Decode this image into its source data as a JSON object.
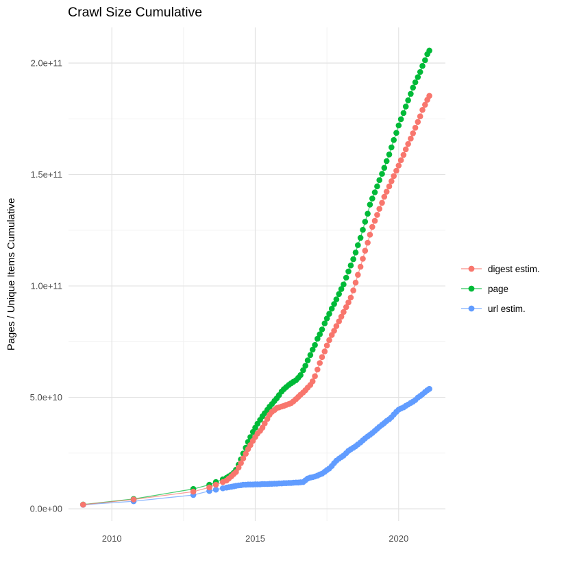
{
  "title": "Crawl Size Cumulative",
  "axes": {
    "y_label": "Pages / Unique Items Cumulative",
    "x_tick_labels": [
      "2010",
      "2015",
      "2020"
    ],
    "y_tick_labels": [
      "0.0e+00",
      "5.0e+10",
      "1.0e+11",
      "1.5e+11",
      "2.0e+11"
    ]
  },
  "legend": {
    "items": [
      {
        "label": "digest estim.",
        "color": "#F8766D"
      },
      {
        "label": "page",
        "color": "#00BA38"
      },
      {
        "label": "url estim.",
        "color": "#619CFF"
      }
    ]
  },
  "colors": {
    "background": "#ffffff",
    "grid_major": "#e2e2e2",
    "grid_minor": "#efefef",
    "tick_text": "#4d4d4d",
    "digest": "#F8766D",
    "page": "#00BA38",
    "url": "#619CFF"
  },
  "chart_data": {
    "type": "scatter",
    "title": "Crawl Size Cumulative",
    "xlabel": "",
    "ylabel": "Pages / Unique Items Cumulative",
    "xlim": [
      2008.49,
      2021.63
    ],
    "ylim": [
      -5500000000,
      216000000000
    ],
    "x_ticks": [
      2010,
      2015,
      2020
    ],
    "x_minor_ticks": [
      2012.5,
      2017.5
    ],
    "y_ticks": [
      0,
      50000000000,
      100000000000,
      150000000000,
      200000000000
    ],
    "y_minor_ticks": [
      25000000000,
      75000000000,
      125000000000,
      175000000000
    ],
    "y_tick_labels": [
      "0.0e+00",
      "5.0e+10",
      "1.0e+11",
      "1.5e+11",
      "2.0e+11"
    ],
    "grid": true,
    "legend_position": "right",
    "y_unit": "billions of pages (1e9)",
    "series": [
      {
        "name": "digest estim.",
        "color": "#F8766D",
        "points": [
          [
            2009.0,
            1.85
          ],
          [
            2010.76,
            4.2
          ],
          [
            2012.84,
            7.7
          ],
          [
            2013.4,
            9.6
          ],
          [
            2013.63,
            10.8
          ],
          [
            2013.87,
            12.0
          ],
          [
            2014.0,
            12.7
          ],
          [
            2014.08,
            13.6
          ],
          [
            2014.17,
            14.6
          ],
          [
            2014.25,
            15.6
          ],
          [
            2014.33,
            16.5
          ],
          [
            2014.42,
            18.5
          ],
          [
            2014.5,
            20.5
          ],
          [
            2014.58,
            22.6
          ],
          [
            2014.67,
            24.7
          ],
          [
            2014.75,
            26.8
          ],
          [
            2014.83,
            28.6
          ],
          [
            2014.92,
            30.5
          ],
          [
            2015.0,
            32.2
          ],
          [
            2015.08,
            33.8
          ],
          [
            2015.17,
            35.0
          ],
          [
            2015.25,
            36.4
          ],
          [
            2015.33,
            38.3
          ],
          [
            2015.42,
            40.3
          ],
          [
            2015.5,
            42.2
          ],
          [
            2015.58,
            43.5
          ],
          [
            2015.67,
            44.3
          ],
          [
            2015.75,
            45.2
          ],
          [
            2015.83,
            45.5
          ],
          [
            2015.92,
            45.9
          ],
          [
            2016.0,
            46.2
          ],
          [
            2016.08,
            46.6
          ],
          [
            2016.17,
            47.0
          ],
          [
            2016.25,
            47.4
          ],
          [
            2016.33,
            48.2
          ],
          [
            2016.42,
            49.2
          ],
          [
            2016.5,
            50.2
          ],
          [
            2016.58,
            51.2
          ],
          [
            2016.67,
            52.2
          ],
          [
            2016.75,
            53.2
          ],
          [
            2016.83,
            54.4
          ],
          [
            2016.92,
            55.6
          ],
          [
            2017.0,
            57.2
          ],
          [
            2017.08,
            59.5
          ],
          [
            2017.17,
            62.5
          ],
          [
            2017.25,
            65.4
          ],
          [
            2017.33,
            68.1
          ],
          [
            2017.42,
            70.6
          ],
          [
            2017.5,
            73.3
          ],
          [
            2017.58,
            75.7
          ],
          [
            2017.67,
            78.0
          ],
          [
            2017.75,
            79.9
          ],
          [
            2017.83,
            82.0
          ],
          [
            2017.92,
            84.1
          ],
          [
            2018.0,
            86.2
          ],
          [
            2018.08,
            88.3
          ],
          [
            2018.17,
            90.5
          ],
          [
            2018.25,
            92.6
          ],
          [
            2018.33,
            94.8
          ],
          [
            2018.42,
            98.0
          ],
          [
            2018.5,
            101.5
          ],
          [
            2018.58,
            105.0
          ],
          [
            2018.67,
            108.6
          ],
          [
            2018.75,
            112.2
          ],
          [
            2018.83,
            115.8
          ],
          [
            2018.92,
            119.4
          ],
          [
            2019.0,
            123.0
          ],
          [
            2019.08,
            126.5
          ],
          [
            2019.17,
            129.2
          ],
          [
            2019.25,
            131.9
          ],
          [
            2019.33,
            134.6
          ],
          [
            2019.42,
            137.3
          ],
          [
            2019.5,
            140.0
          ],
          [
            2019.58,
            142.3
          ],
          [
            2019.67,
            144.7
          ],
          [
            2019.75,
            147.0
          ],
          [
            2019.83,
            149.3
          ],
          [
            2019.92,
            151.7
          ],
          [
            2020.0,
            154.0
          ],
          [
            2020.08,
            156.4
          ],
          [
            2020.17,
            158.8
          ],
          [
            2020.25,
            161.3
          ],
          [
            2020.33,
            163.7
          ],
          [
            2020.42,
            166.1
          ],
          [
            2020.5,
            168.5
          ],
          [
            2020.58,
            171.0
          ],
          [
            2020.67,
            173.6
          ],
          [
            2020.75,
            176.1
          ],
          [
            2020.83,
            179.0
          ],
          [
            2020.92,
            181.3
          ],
          [
            2021.0,
            183.5
          ],
          [
            2021.07,
            185.3
          ]
        ]
      },
      {
        "name": "page",
        "color": "#00BA38",
        "points": [
          [
            2009.0,
            1.9
          ],
          [
            2010.76,
            4.4
          ],
          [
            2012.84,
            8.9
          ],
          [
            2013.4,
            10.8
          ],
          [
            2013.63,
            12.0
          ],
          [
            2013.87,
            13.2
          ],
          [
            2014.0,
            13.9
          ],
          [
            2014.08,
            14.6
          ],
          [
            2014.17,
            15.3
          ],
          [
            2014.25,
            16.2
          ],
          [
            2014.33,
            17.5
          ],
          [
            2014.42,
            19.8
          ],
          [
            2014.5,
            22.2
          ],
          [
            2014.58,
            24.8
          ],
          [
            2014.67,
            27.4
          ],
          [
            2014.75,
            30.0
          ],
          [
            2014.83,
            32.2
          ],
          [
            2014.92,
            34.5
          ],
          [
            2015.0,
            36.4
          ],
          [
            2015.08,
            38.2
          ],
          [
            2015.17,
            39.9
          ],
          [
            2015.25,
            41.5
          ],
          [
            2015.33,
            42.9
          ],
          [
            2015.42,
            44.4
          ],
          [
            2015.5,
            45.8
          ],
          [
            2015.58,
            47.0
          ],
          [
            2015.67,
            48.4
          ],
          [
            2015.75,
            49.6
          ],
          [
            2015.83,
            51.0
          ],
          [
            2015.92,
            52.6
          ],
          [
            2016.0,
            53.7
          ],
          [
            2016.08,
            54.6
          ],
          [
            2016.17,
            55.6
          ],
          [
            2016.25,
            56.3
          ],
          [
            2016.33,
            57.0
          ],
          [
            2016.42,
            57.7
          ],
          [
            2016.5,
            58.8
          ],
          [
            2016.58,
            60.0
          ],
          [
            2016.67,
            62.2
          ],
          [
            2016.75,
            64.2
          ],
          [
            2016.83,
            66.6
          ],
          [
            2016.92,
            69.0
          ],
          [
            2017.0,
            71.4
          ],
          [
            2017.08,
            73.5
          ],
          [
            2017.17,
            76.3
          ],
          [
            2017.25,
            78.3
          ],
          [
            2017.33,
            80.5
          ],
          [
            2017.42,
            83.2
          ],
          [
            2017.5,
            85.4
          ],
          [
            2017.58,
            87.5
          ],
          [
            2017.67,
            89.8
          ],
          [
            2017.75,
            91.9
          ],
          [
            2017.83,
            94.0
          ],
          [
            2017.92,
            96.4
          ],
          [
            2018.0,
            98.6
          ],
          [
            2018.08,
            100.7
          ],
          [
            2018.17,
            103.7
          ],
          [
            2018.25,
            106.5
          ],
          [
            2018.33,
            109.2
          ],
          [
            2018.42,
            112.0
          ],
          [
            2018.5,
            115.0
          ],
          [
            2018.58,
            118.3
          ],
          [
            2018.67,
            121.6
          ],
          [
            2018.75,
            125.2
          ],
          [
            2018.83,
            128.8
          ],
          [
            2018.92,
            132.4
          ],
          [
            2019.0,
            136.5
          ],
          [
            2019.08,
            139.2
          ],
          [
            2019.17,
            142.0
          ],
          [
            2019.25,
            144.7
          ],
          [
            2019.33,
            147.5
          ],
          [
            2019.42,
            150.3
          ],
          [
            2019.5,
            153.0
          ],
          [
            2019.58,
            156.0
          ],
          [
            2019.67,
            159.0
          ],
          [
            2019.75,
            162.2
          ],
          [
            2019.83,
            165.5
          ],
          [
            2019.92,
            168.7
          ],
          [
            2020.0,
            172.0
          ],
          [
            2020.08,
            174.8
          ],
          [
            2020.17,
            177.6
          ],
          [
            2020.25,
            180.5
          ],
          [
            2020.33,
            183.3
          ],
          [
            2020.42,
            186.2
          ],
          [
            2020.5,
            189.0
          ],
          [
            2020.58,
            191.4
          ],
          [
            2020.67,
            193.7
          ],
          [
            2020.75,
            196.0
          ],
          [
            2020.83,
            198.7
          ],
          [
            2020.92,
            201.3
          ],
          [
            2021.0,
            204.0
          ],
          [
            2021.07,
            205.6
          ]
        ]
      },
      {
        "name": "url estim.",
        "color": "#619CFF",
        "points": [
          [
            2009.0,
            1.8
          ],
          [
            2010.76,
            3.4
          ],
          [
            2012.84,
            6.2
          ],
          [
            2013.4,
            8.0
          ],
          [
            2013.63,
            8.6
          ],
          [
            2013.87,
            9.2
          ],
          [
            2014.0,
            9.5
          ],
          [
            2014.08,
            9.7
          ],
          [
            2014.17,
            9.9
          ],
          [
            2014.25,
            10.1
          ],
          [
            2014.33,
            10.3
          ],
          [
            2014.42,
            10.5
          ],
          [
            2014.5,
            10.6
          ],
          [
            2014.58,
            10.8
          ],
          [
            2014.67,
            10.8
          ],
          [
            2014.75,
            10.9
          ],
          [
            2014.83,
            10.9
          ],
          [
            2014.92,
            10.9
          ],
          [
            2015.0,
            11.0
          ],
          [
            2015.08,
            11.0
          ],
          [
            2015.17,
            11.0
          ],
          [
            2015.25,
            11.1
          ],
          [
            2015.33,
            11.1
          ],
          [
            2015.42,
            11.1
          ],
          [
            2015.5,
            11.2
          ],
          [
            2015.58,
            11.2
          ],
          [
            2015.67,
            11.3
          ],
          [
            2015.75,
            11.3
          ],
          [
            2015.83,
            11.4
          ],
          [
            2015.92,
            11.4
          ],
          [
            2016.0,
            11.5
          ],
          [
            2016.08,
            11.5
          ],
          [
            2016.17,
            11.6
          ],
          [
            2016.25,
            11.6
          ],
          [
            2016.33,
            11.7
          ],
          [
            2016.42,
            11.8
          ],
          [
            2016.5,
            11.8
          ],
          [
            2016.58,
            11.9
          ],
          [
            2016.67,
            12.0
          ],
          [
            2016.75,
            12.8
          ],
          [
            2016.83,
            13.6
          ],
          [
            2016.92,
            14.0
          ],
          [
            2017.0,
            14.2
          ],
          [
            2017.08,
            14.5
          ],
          [
            2017.17,
            14.9
          ],
          [
            2017.25,
            15.4
          ],
          [
            2017.33,
            15.8
          ],
          [
            2017.42,
            16.6
          ],
          [
            2017.5,
            17.4
          ],
          [
            2017.58,
            18.1
          ],
          [
            2017.67,
            19.2
          ],
          [
            2017.75,
            20.5
          ],
          [
            2017.83,
            21.6
          ],
          [
            2017.92,
            22.5
          ],
          [
            2018.0,
            23.2
          ],
          [
            2018.08,
            23.9
          ],
          [
            2018.17,
            25.0
          ],
          [
            2018.25,
            26.0
          ],
          [
            2018.33,
            26.7
          ],
          [
            2018.42,
            27.4
          ],
          [
            2018.5,
            28.1
          ],
          [
            2018.58,
            28.9
          ],
          [
            2018.67,
            29.8
          ],
          [
            2018.75,
            30.7
          ],
          [
            2018.83,
            31.6
          ],
          [
            2018.92,
            32.5
          ],
          [
            2019.0,
            33.2
          ],
          [
            2019.08,
            34.0
          ],
          [
            2019.17,
            35.0
          ],
          [
            2019.25,
            35.9
          ],
          [
            2019.33,
            36.8
          ],
          [
            2019.42,
            37.7
          ],
          [
            2019.5,
            38.5
          ],
          [
            2019.58,
            39.4
          ],
          [
            2019.67,
            40.2
          ],
          [
            2019.75,
            41.1
          ],
          [
            2019.83,
            42.3
          ],
          [
            2019.92,
            43.5
          ],
          [
            2020.0,
            44.5
          ],
          [
            2020.08,
            45.0
          ],
          [
            2020.17,
            45.5
          ],
          [
            2020.25,
            46.2
          ],
          [
            2020.33,
            46.8
          ],
          [
            2020.42,
            47.5
          ],
          [
            2020.5,
            48.1
          ],
          [
            2020.58,
            48.8
          ],
          [
            2020.67,
            49.9
          ],
          [
            2020.75,
            50.6
          ],
          [
            2020.83,
            51.4
          ],
          [
            2020.92,
            52.4
          ],
          [
            2021.0,
            53.2
          ],
          [
            2021.07,
            53.8
          ]
        ]
      }
    ]
  }
}
